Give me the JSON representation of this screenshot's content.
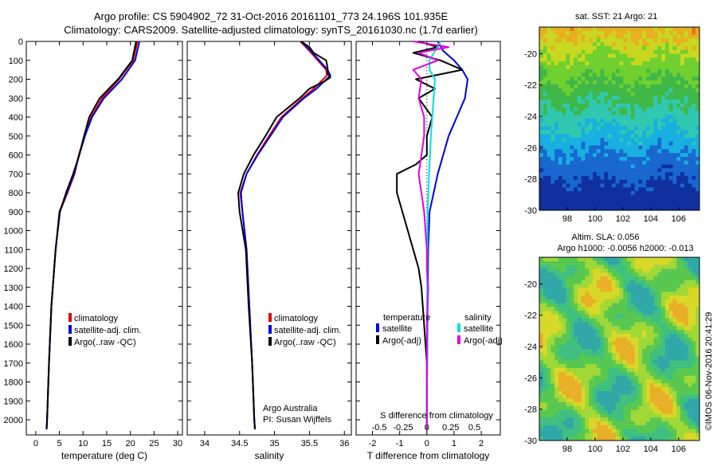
{
  "header": {
    "line1": "Argo profile: CS 5904902_72 31-Oct-2016 20161101_773 24.196S 101.935E",
    "line2": "Climatology: CARS2009. Satellite-adjusted climatology: synTS_20161030.nc (1.7d earlier)"
  },
  "side_stamp": "©IMOS 06-Nov-2016 20:41:29",
  "colors": {
    "climatology": "#e00000",
    "satellite": "#0000e0",
    "argo": "#000000",
    "sal_satellite": "#00e0e0",
    "sal_argo": "#e000e0"
  },
  "chart_data": [
    {
      "type": "line",
      "xlabel": "temperature (deg C)",
      "ylabel": "",
      "xlim": [
        -2,
        31
      ],
      "ylim": [
        2080,
        0
      ],
      "xticks": [
        "0",
        "5",
        "10",
        "15",
        "20",
        "25",
        "30"
      ],
      "yticks": [
        "0",
        "100",
        "200",
        "300",
        "400",
        "500",
        "600",
        "700",
        "800",
        "900",
        "1000",
        "1100",
        "1200",
        "1300",
        "1400",
        "1500",
        "1600",
        "1700",
        "1800",
        "1900",
        "2000"
      ],
      "legend": [
        "climatology",
        "satellite-adj. clim.",
        "Argo(..raw -QC)"
      ],
      "series": [
        {
          "name": "climatology",
          "color": "#e00000",
          "depth": [
            0,
            100,
            200,
            300,
            400,
            500,
            600,
            700,
            800,
            900,
            1100,
            1400,
            1700,
            2000,
            2050
          ],
          "values": [
            21.5,
            20.6,
            17.6,
            14,
            11.7,
            10.3,
            9.1,
            8.2,
            6.7,
            5.1,
            4.2,
            3.3,
            2.8,
            2.4,
            2.3
          ]
        },
        {
          "name": "satellite-adj. clim.",
          "color": "#0000e0",
          "depth": [
            0,
            100,
            200,
            300,
            400,
            500,
            600,
            700,
            800,
            900,
            1100,
            1400,
            1700,
            2000,
            2050
          ],
          "values": [
            21.9,
            21,
            18.2,
            14.4,
            11.9,
            10.4,
            9.2,
            8.1,
            6.6,
            5,
            4.2,
            3.3,
            2.8,
            2.4,
            2.3
          ]
        },
        {
          "name": "Argo(..raw -QC)",
          "color": "#000000",
          "depth": [
            0,
            100,
            200,
            300,
            400,
            500,
            600,
            700,
            800,
            900,
            1100,
            1400,
            1700,
            2000,
            2050
          ],
          "values": [
            21.2,
            20.4,
            17.4,
            13.5,
            11.3,
            10.2,
            9.2,
            7.9,
            6.4,
            5.1,
            4.2,
            3.3,
            2.8,
            2.4,
            2.3
          ]
        }
      ]
    },
    {
      "type": "line",
      "xlabel": "salinity",
      "xlim": [
        33.75,
        36.1
      ],
      "ylim": [
        2080,
        0
      ],
      "xticks": [
        "34",
        "34.5",
        "35",
        "35.5",
        "36"
      ],
      "legend": [
        "climatology",
        "satellite-adj. clim.",
        "Argo(..raw -QC)"
      ],
      "note": [
        "Argo Australia",
        "PI: Susan Wijffels"
      ],
      "series": [
        {
          "name": "climatology",
          "color": "#e00000",
          "depth": [
            0,
            50,
            100,
            150,
            180,
            250,
            300,
            400,
            500,
            600,
            700,
            800,
            900,
            1100,
            1400,
            1700,
            2000,
            2050
          ],
          "values": [
            35.37,
            35.5,
            35.62,
            35.74,
            35.75,
            35.56,
            35.4,
            35.1,
            34.92,
            34.75,
            34.6,
            34.51,
            34.54,
            34.6,
            34.64,
            34.68,
            34.71,
            34.72
          ]
        },
        {
          "name": "satellite-adj. clim.",
          "color": "#0000e0",
          "depth": [
            0,
            50,
            100,
            150,
            180,
            250,
            300,
            400,
            500,
            600,
            700,
            800,
            900,
            1100,
            1400,
            1700,
            2000,
            2050
          ],
          "values": [
            35.38,
            35.52,
            35.64,
            35.76,
            35.8,
            35.6,
            35.42,
            35.12,
            34.94,
            34.76,
            34.6,
            34.52,
            34.54,
            34.6,
            34.64,
            34.68,
            34.71,
            34.72
          ]
        },
        {
          "name": "Argo(..raw -QC)",
          "color": "#000000",
          "depth": [
            0,
            30,
            60,
            100,
            140,
            170,
            190,
            210,
            250,
            300,
            400,
            500,
            600,
            700,
            800,
            900,
            1100,
            1400,
            1700,
            2000,
            2050
          ],
          "values": [
            35.38,
            35.5,
            35.56,
            35.74,
            35.76,
            35.76,
            35.8,
            35.72,
            35.5,
            35.36,
            35.03,
            34.87,
            34.7,
            34.56,
            34.48,
            34.5,
            34.59,
            34.63,
            34.68,
            34.71,
            34.72
          ]
        }
      ]
    },
    {
      "type": "line",
      "xlabel": "T difference from climatology",
      "xlabel_top": "S difference from climatology",
      "xlim": [
        -2.6,
        2.7
      ],
      "ylim": [
        2080,
        0
      ],
      "xticks": [
        "-2",
        "-1",
        "0",
        "1",
        "2"
      ],
      "xticks_top": [
        "-0.5",
        "-0.25",
        "0",
        "0.25",
        "0.5"
      ],
      "legend_titles": [
        "temperature",
        "salinity"
      ],
      "legend": [
        "satellite",
        "Argo(-adj)",
        "satellite",
        "Argo(-adj)"
      ],
      "series": [
        {
          "name": "temperature satellite",
          "color": "#0000e0",
          "depth": [
            0,
            50,
            100,
            150,
            200,
            300,
            400,
            500,
            700,
            900,
            1100,
            1500,
            2000,
            2050
          ],
          "values": [
            0.4,
            0.6,
            1,
            1.3,
            1.5,
            1.4,
            1.1,
            0.8,
            0.4,
            0.1,
            0.05,
            0.02,
            0,
            0
          ]
        },
        {
          "name": "temperature Argo(-adj)",
          "color": "#000000",
          "depth": [
            0,
            30,
            60,
            100,
            150,
            200,
            250,
            300,
            400,
            500,
            600,
            650,
            700,
            800,
            900,
            1000,
            1100,
            1200,
            1300,
            1500,
            1700,
            2000,
            2050
          ],
          "values": [
            -0.3,
            0.4,
            -0.5,
            0.5,
            1.3,
            -0.4,
            0.3,
            -0.3,
            0.2,
            0,
            0,
            -0.4,
            -1.1,
            -1.1,
            -0.9,
            -0.7,
            -0.5,
            -0.3,
            -0.2,
            -0.1,
            0,
            0,
            0
          ]
        },
        {
          "name": "salinity satellite",
          "color": "#00e0e0",
          "depth": [
            0,
            50,
            100,
            150,
            200,
            300,
            400,
            500,
            700,
            900,
            1100,
            1500,
            2000,
            2050
          ],
          "values": [
            0.5,
            0.3,
            0.1,
            0.1,
            0.3,
            0.25,
            0.2,
            0.15,
            0.08,
            0.03,
            0.02,
            0.01,
            0,
            0
          ]
        },
        {
          "name": "salinity Argo(-adj)",
          "color": "#e000e0",
          "depth": [
            0,
            30,
            60,
            100,
            150,
            200,
            300,
            400,
            500,
            600,
            700,
            800,
            900,
            1000,
            1100,
            1200,
            1300,
            1500,
            2000,
            2050
          ],
          "values": [
            -0.5,
            0.8,
            -0.3,
            0.4,
            -0.5,
            -0.2,
            -0.3,
            -0.1,
            -0.1,
            -0.2,
            -0.3,
            -0.2,
            -0.1,
            -0.05,
            0,
            0,
            0.05,
            0,
            0,
            0
          ]
        }
      ]
    },
    {
      "type": "heatmap",
      "title": "sat. SST: 21 Argo: 21",
      "xlim": [
        96,
        107.5
      ],
      "ylim": [
        -30,
        -18.3
      ],
      "xticks": [
        "98",
        "100",
        "102",
        "104",
        "106"
      ],
      "yticks": [
        "-20",
        "-22",
        "-24",
        "-26",
        "-28",
        "-30"
      ]
    },
    {
      "type": "heatmap",
      "title": "Altim. SLA: 0.056",
      "subtitle": "Argo h1000: -0.0056 h2000: -0.013",
      "xlim": [
        96,
        107.5
      ],
      "ylim": [
        -30,
        -18.3
      ],
      "xticks": [
        "98",
        "100",
        "102",
        "104",
        "106"
      ],
      "yticks": [
        "-20",
        "-22",
        "-24",
        "-26",
        "-28",
        "-30"
      ]
    }
  ]
}
